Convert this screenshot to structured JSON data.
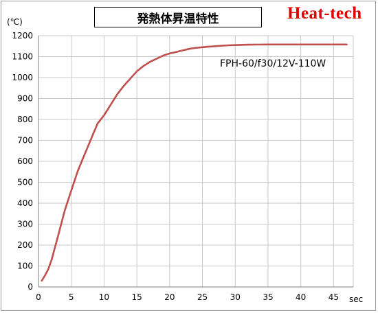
{
  "header": {
    "title": "発熱体昇温特性",
    "brand": "Heat-tech"
  },
  "colors": {
    "line": "#c0504d",
    "grid": "#c8c8c8",
    "brand": "#e00000"
  },
  "chart_data": {
    "type": "line",
    "title": "発熱体昇温特性",
    "ylabel": "(℃)",
    "xlabel": "sec",
    "xlim": [
      0,
      48
    ],
    "ylim": [
      0,
      1200
    ],
    "xticks": [
      0,
      5,
      10,
      15,
      20,
      25,
      30,
      35,
      40,
      45
    ],
    "yticks": [
      0,
      100,
      200,
      300,
      400,
      500,
      600,
      700,
      800,
      900,
      1000,
      1100,
      1200
    ],
    "grid": true,
    "annotation": "FPH-60/f30/12V-110W",
    "series": [
      {
        "x": [
          0.5,
          1,
          1.5,
          2,
          3,
          4,
          5,
          6,
          7,
          8,
          9,
          10,
          11,
          12,
          13,
          14,
          15,
          16,
          17,
          18,
          19,
          20,
          21,
          22,
          23,
          24,
          25,
          26,
          27,
          28,
          29,
          30,
          32,
          35,
          40,
          45,
          47
        ],
        "y": [
          30,
          55,
          85,
          130,
          245,
          365,
          460,
          555,
          630,
          705,
          780,
          820,
          870,
          920,
          960,
          995,
          1030,
          1055,
          1075,
          1090,
          1105,
          1115,
          1122,
          1130,
          1137,
          1142,
          1145,
          1148,
          1150,
          1152,
          1154,
          1155,
          1157,
          1158,
          1158,
          1158,
          1158
        ]
      }
    ]
  }
}
